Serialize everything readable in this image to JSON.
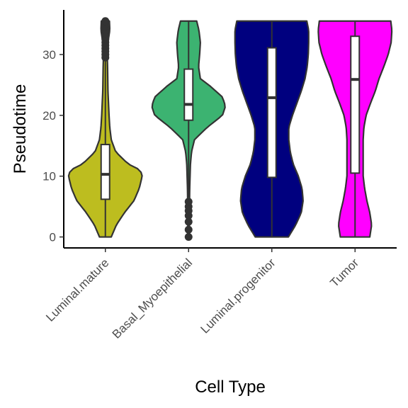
{
  "chart_data": {
    "type": "violin",
    "title": "",
    "xlabel": "Cell Type",
    "ylabel": "Pseudotime",
    "ylim": [
      -1.8,
      37.8
    ],
    "yticks": [
      0,
      10,
      20,
      30
    ],
    "grid": false,
    "legend": "none",
    "categories": [
      "Luminal.mature",
      "Basal_Myoepithelial",
      "Luminal.progenitor",
      "Tumor"
    ],
    "series": [
      {
        "category": "Luminal.mature",
        "color": "#BDBD1F",
        "min": 0,
        "max": 35.5,
        "box": {
          "q1": 6.2,
          "median": 10.3,
          "q3": 15.2,
          "whisker_low": 0,
          "whisker_high": 29.0
        },
        "outliers": [
          29.5,
          30.0,
          30.5,
          31.0,
          31.5,
          32.0,
          32.5,
          33.0,
          33.5,
          34.0,
          34.5,
          35.0,
          35.5
        ],
        "density_profile": [
          [
            0,
            0.16
          ],
          [
            2,
            0.3
          ],
          [
            4,
            0.52
          ],
          [
            6,
            0.78
          ],
          [
            8,
            0.92
          ],
          [
            10,
            1.0
          ],
          [
            11,
            0.95
          ],
          [
            12,
            0.62
          ],
          [
            14,
            0.28
          ],
          [
            16,
            0.16
          ],
          [
            18,
            0.12
          ],
          [
            20,
            0.1
          ],
          [
            24,
            0.07
          ],
          [
            28,
            0.06
          ],
          [
            30,
            0.05
          ],
          [
            32,
            0.07
          ],
          [
            34,
            0.12
          ],
          [
            35.5,
            0.11
          ]
        ]
      },
      {
        "category": "Basal_Myoepithelial",
        "color": "#3CB371",
        "min": 0,
        "max": 35.5,
        "box": {
          "q1": 19.2,
          "median": 21.8,
          "q3": 27.6,
          "whisker_low": 6.5,
          "whisker_high": 35.5
        },
        "outliers": [
          0,
          1.2,
          2.5,
          3.5,
          4.3,
          5.0,
          5.8
        ],
        "density_profile": [
          [
            0,
            0.02
          ],
          [
            4,
            0.02
          ],
          [
            8,
            0.03
          ],
          [
            12,
            0.05
          ],
          [
            14,
            0.08
          ],
          [
            16,
            0.16
          ],
          [
            18,
            0.5
          ],
          [
            20,
            0.92
          ],
          [
            21.5,
            1.0
          ],
          [
            23,
            0.92
          ],
          [
            25,
            0.55
          ],
          [
            26,
            0.32
          ],
          [
            28,
            0.27
          ],
          [
            30,
            0.3
          ],
          [
            32,
            0.32
          ],
          [
            34,
            0.28
          ],
          [
            35.5,
            0.22
          ]
        ]
      },
      {
        "category": "Luminal.progenitor",
        "color": "#00007F",
        "min": 0,
        "max": 35.5,
        "box": {
          "q1": 9.8,
          "median": 22.9,
          "q3": 31.1,
          "whisker_low": 0,
          "whisker_high": 35.5
        },
        "outliers": [],
        "density_profile": [
          [
            0,
            0.45
          ],
          [
            2,
            0.65
          ],
          [
            4,
            0.8
          ],
          [
            6,
            0.85
          ],
          [
            8,
            0.82
          ],
          [
            10,
            0.72
          ],
          [
            12,
            0.58
          ],
          [
            14,
            0.5
          ],
          [
            16,
            0.46
          ],
          [
            18,
            0.46
          ],
          [
            20,
            0.56
          ],
          [
            22,
            0.68
          ],
          [
            24,
            0.8
          ],
          [
            26,
            0.9
          ],
          [
            28,
            0.96
          ],
          [
            30,
            0.99
          ],
          [
            32,
            1.0
          ],
          [
            34,
            1.0
          ],
          [
            35.5,
            0.95
          ]
        ]
      },
      {
        "category": "Tumor",
        "color": "#FF00FF",
        "min": 0,
        "max": 35.5,
        "box": {
          "q1": 10.5,
          "median": 25.9,
          "q3": 33.0,
          "whisker_low": 0,
          "whisker_high": 35.5
        },
        "outliers": [],
        "density_profile": [
          [
            0,
            0.4
          ],
          [
            2,
            0.45
          ],
          [
            4,
            0.4
          ],
          [
            6,
            0.32
          ],
          [
            8,
            0.26
          ],
          [
            10,
            0.22
          ],
          [
            12,
            0.22
          ],
          [
            14,
            0.22
          ],
          [
            16,
            0.22
          ],
          [
            18,
            0.24
          ],
          [
            20,
            0.3
          ],
          [
            22,
            0.42
          ],
          [
            24,
            0.55
          ],
          [
            26,
            0.65
          ],
          [
            28,
            0.78
          ],
          [
            30,
            0.9
          ],
          [
            32,
            0.98
          ],
          [
            34,
            1.0
          ],
          [
            35.5,
            0.97
          ]
        ]
      }
    ]
  }
}
